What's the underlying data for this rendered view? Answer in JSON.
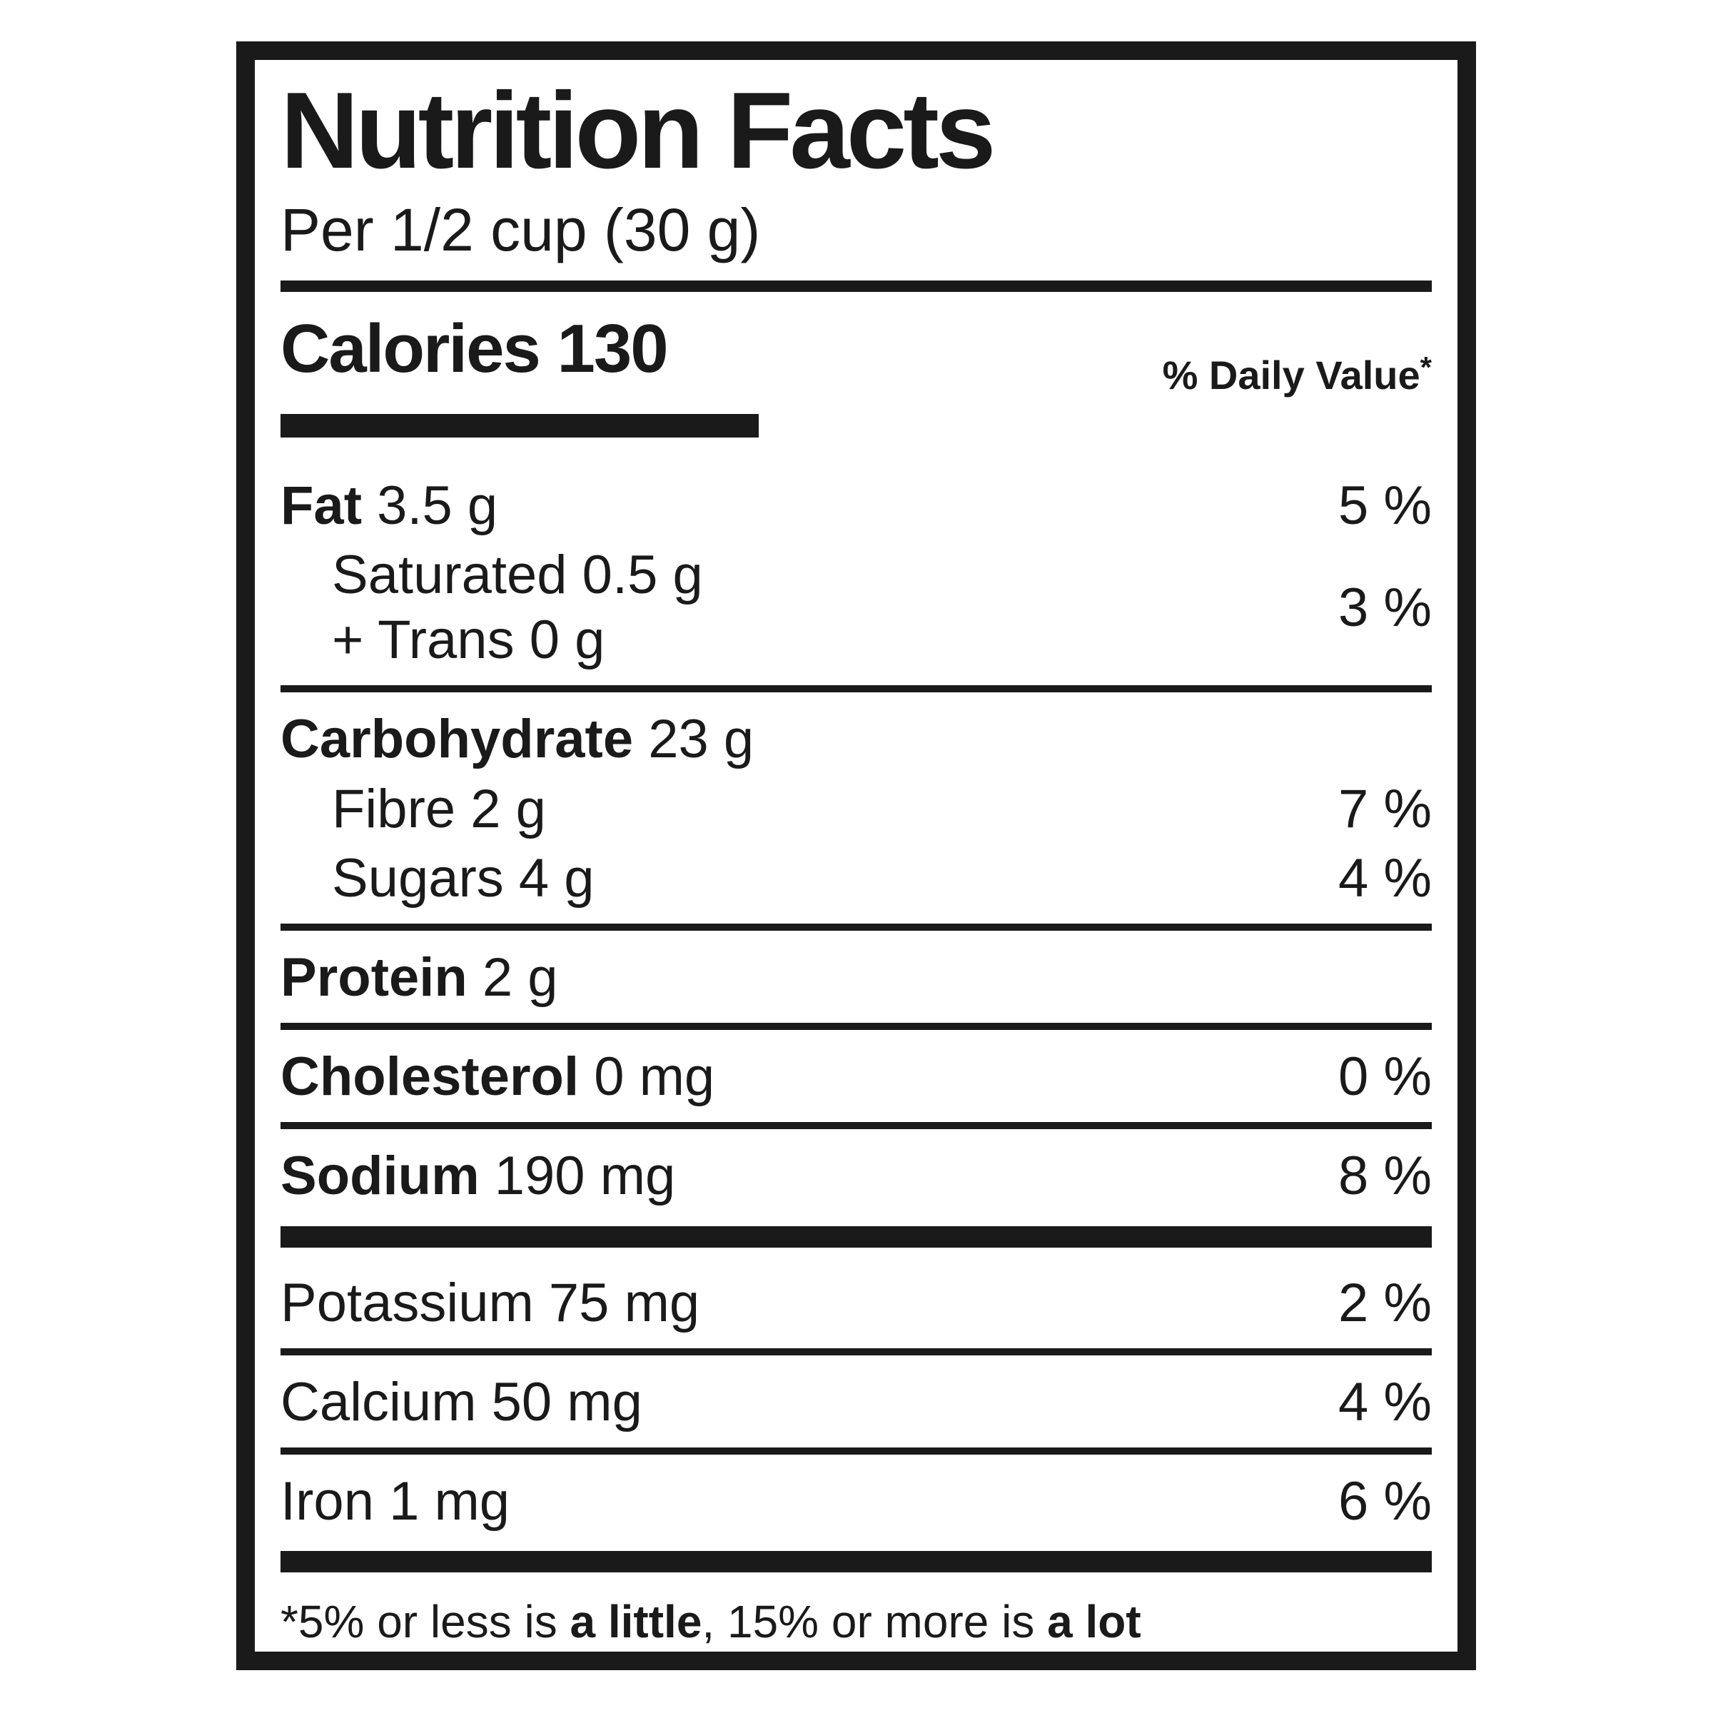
{
  "colors": {
    "ink": "#1a1a1a",
    "background": "#ffffff"
  },
  "label": {
    "title": "Nutrition Facts",
    "serving": "Per 1/2 cup (30 g)",
    "calories": "Calories 130",
    "daily_value_header": "% Daily Value",
    "daily_value_asterisk": "*",
    "body": [
      {
        "type": "row",
        "bold": "Fat",
        "text": " 3.5 g",
        "percent": "5 %"
      },
      {
        "type": "group",
        "lines": [
          "Saturated 0.5 g",
          "+ Trans 0 g"
        ],
        "percent": "3 %"
      },
      {
        "type": "rule"
      },
      {
        "type": "row",
        "bold": "Carbohydrate",
        "text": " 23 g",
        "percent": ""
      },
      {
        "type": "row",
        "indent": true,
        "text": "Fibre 2 g",
        "percent": "7 %"
      },
      {
        "type": "row",
        "indent": true,
        "text": "Sugars 4 g",
        "percent": "4 %"
      },
      {
        "type": "rule"
      },
      {
        "type": "row",
        "bold": "Protein",
        "text": " 2 g",
        "percent": ""
      },
      {
        "type": "rule"
      },
      {
        "type": "row",
        "bold": "Cholesterol",
        "text": " 0 mg",
        "percent": "0 %"
      },
      {
        "type": "rule"
      },
      {
        "type": "row",
        "bold": "Sodium",
        "text": " 190 mg",
        "percent": "8 %"
      },
      {
        "type": "thickbar"
      },
      {
        "type": "row",
        "text": "Potassium 75 mg",
        "percent": "2 %"
      },
      {
        "type": "rule"
      },
      {
        "type": "row",
        "text": "Calcium 50 mg",
        "percent": "4 %"
      },
      {
        "type": "rule"
      },
      {
        "type": "row",
        "text": "Iron 1 mg",
        "percent": "6 %"
      },
      {
        "type": "thickbar"
      }
    ],
    "footnote": {
      "prefix": "*5% or less is ",
      "bold1": "a little",
      "middle": ", 15% or more is ",
      "bold2": "a lot"
    }
  }
}
